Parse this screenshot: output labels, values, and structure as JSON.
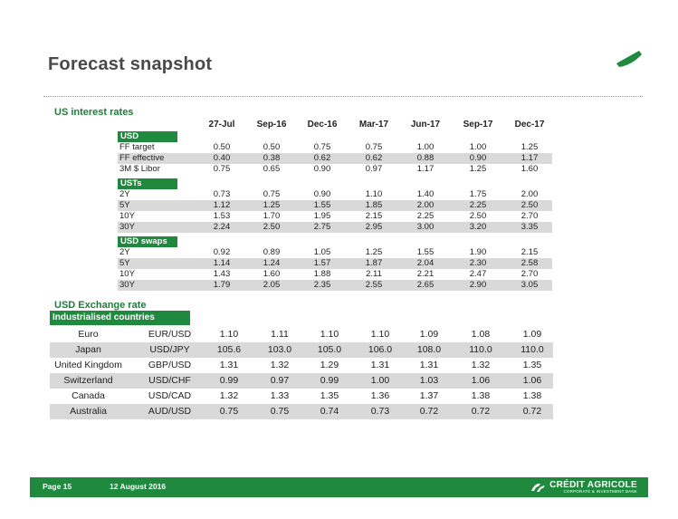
{
  "header": {
    "title": "Forecast snapshot"
  },
  "colors": {
    "brand_green": "#1f8a3e",
    "title_grey": "#4a4a4a",
    "row_shade": "#d9d9d9"
  },
  "rates": {
    "title": "US interest rates",
    "columns": [
      "27-Jul",
      "Sep-16",
      "Dec-16",
      "Mar-17",
      "Jun-17",
      "Sep-17",
      "Dec-17"
    ],
    "groups": [
      {
        "name": "USD",
        "rows": [
          {
            "label": "FF target",
            "values": [
              "0.50",
              "0.50",
              "0.75",
              "0.75",
              "1.00",
              "1.00",
              "1.25"
            ]
          },
          {
            "label": "FF effective",
            "values": [
              "0.40",
              "0.38",
              "0.62",
              "0.62",
              "0.88",
              "0.90",
              "1.17"
            ]
          },
          {
            "label": "3M $ Libor",
            "values": [
              "0.75",
              "0.65",
              "0.90",
              "0.97",
              "1.17",
              "1.25",
              "1.60"
            ]
          }
        ]
      },
      {
        "name": "USTs",
        "rows": [
          {
            "label": "2Y",
            "values": [
              "0.73",
              "0.75",
              "0.90",
              "1.10",
              "1.40",
              "1.75",
              "2.00"
            ]
          },
          {
            "label": "5Y",
            "values": [
              "1.12",
              "1.25",
              "1.55",
              "1.85",
              "2.00",
              "2.25",
              "2.50"
            ]
          },
          {
            "label": "10Y",
            "values": [
              "1.53",
              "1.70",
              "1.95",
              "2.15",
              "2.25",
              "2.50",
              "2.70"
            ]
          },
          {
            "label": "30Y",
            "values": [
              "2.24",
              "2.50",
              "2.75",
              "2.95",
              "3.00",
              "3.20",
              "3.35"
            ]
          }
        ]
      },
      {
        "name": "USD swaps",
        "rows": [
          {
            "label": "2Y",
            "values": [
              "0.92",
              "0.89",
              "1.05",
              "1.25",
              "1.55",
              "1.90",
              "2.15"
            ]
          },
          {
            "label": "5Y",
            "values": [
              "1.14",
              "1.24",
              "1.57",
              "1.87",
              "2.04",
              "2.30",
              "2.58"
            ]
          },
          {
            "label": "10Y",
            "values": [
              "1.43",
              "1.60",
              "1.88",
              "2.11",
              "2.21",
              "2.47",
              "2.70"
            ]
          },
          {
            "label": "30Y",
            "values": [
              "1.79",
              "2.05",
              "2.35",
              "2.55",
              "2.65",
              "2.90",
              "3.05"
            ]
          }
        ]
      }
    ]
  },
  "fx": {
    "title": "USD Exchange rate",
    "group": "Industrialised countries",
    "rows": [
      {
        "country": "Euro",
        "pair": "EUR/USD",
        "values": [
          "1.10",
          "1.11",
          "1.10",
          "1.10",
          "1.09",
          "1.08",
          "1.09"
        ]
      },
      {
        "country": "Japan",
        "pair": "USD/JPY",
        "values": [
          "105.6",
          "103.0",
          "105.0",
          "106.0",
          "108.0",
          "110.0",
          "110.0"
        ]
      },
      {
        "country": "United Kingdom",
        "pair": "GBP/USD",
        "values": [
          "1.31",
          "1.32",
          "1.29",
          "1.31",
          "1.31",
          "1.32",
          "1.35"
        ]
      },
      {
        "country": "Switzerland",
        "pair": "USD/CHF",
        "values": [
          "0.99",
          "0.97",
          "0.99",
          "1.00",
          "1.03",
          "1.06",
          "1.06"
        ]
      },
      {
        "country": "Canada",
        "pair": "USD/CAD",
        "values": [
          "1.32",
          "1.33",
          "1.35",
          "1.36",
          "1.37",
          "1.38",
          "1.38"
        ]
      },
      {
        "country": "Australia",
        "pair": "AUD/USD",
        "values": [
          "0.75",
          "0.75",
          "0.74",
          "0.73",
          "0.72",
          "0.72",
          "0.72"
        ]
      }
    ]
  },
  "footer": {
    "page": "Page 15",
    "date": "12 August 2016",
    "brand_name": "CRÉDIT AGRICOLE",
    "brand_sub": "CORPORATE & INVESTMENT BANK"
  }
}
